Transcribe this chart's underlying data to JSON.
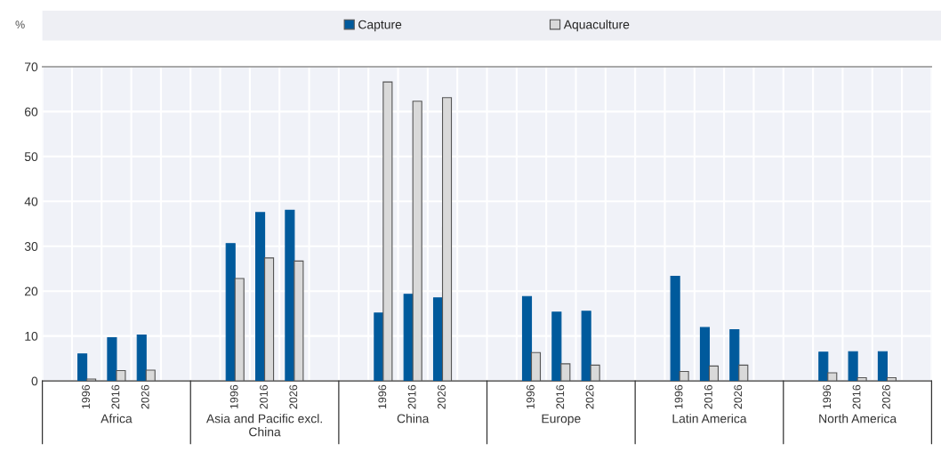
{
  "chart_data": {
    "type": "bar",
    "ylabel": "%",
    "categories": [
      null,
      "1996",
      "2016",
      "2026",
      null,
      null,
      "1996",
      "2016",
      "2026",
      null,
      null,
      "1996",
      "2016",
      "2026",
      null,
      null,
      "1996",
      "2016",
      "2026",
      null,
      null,
      "1996",
      "2016",
      "2026",
      null,
      null,
      "1996",
      "2016",
      "2026",
      null
    ],
    "series": [
      {
        "name": "Capture",
        "color": "#005a9c",
        "values": [
          null,
          6.0,
          9.6,
          10.2,
          null,
          null,
          30.6,
          37.5,
          38.0,
          null,
          null,
          15.1,
          19.3,
          18.5,
          null,
          null,
          18.8,
          15.3,
          15.5,
          null,
          null,
          23.3,
          11.9,
          11.4,
          null,
          null,
          6.4,
          6.5,
          6.5,
          null
        ]
      },
      {
        "name": "Aquaculture",
        "color": "#d9d9d9",
        "values": [
          null,
          0.4,
          2.3,
          2.4,
          null,
          null,
          22.8,
          27.4,
          26.7,
          null,
          null,
          66.6,
          62.3,
          63.1,
          null,
          null,
          6.3,
          3.8,
          3.5,
          null,
          null,
          2.1,
          3.3,
          3.5,
          null,
          null,
          1.8,
          0.7,
          0.7,
          null
        ]
      }
    ],
    "annotations": [
      "Africa",
      "Asia and Pacific excl.\nChina",
      "China",
      "Europe",
      "Latin America",
      "North America"
    ],
    "ylim": [
      0,
      70
    ],
    "yticks": [
      0,
      10,
      20,
      30,
      40,
      50,
      60,
      70
    ],
    "grid": true,
    "legend": "top"
  }
}
